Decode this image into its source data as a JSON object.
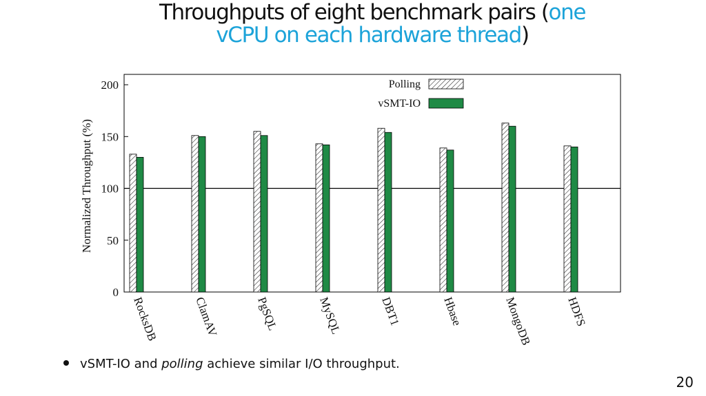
{
  "slide": {
    "title_part1": "Throughputs of eight benchmark pairs (",
    "title_highlight": "one vCPU on each hardware thread",
    "title_part3": ")",
    "bullet_part1": "vSMT-IO and ",
    "bullet_em": "polling",
    "bullet_part2": " achieve similar I/O throughput.",
    "page_number": "20",
    "highlight_color": "#1ca3d9"
  },
  "chart_data": {
    "type": "bar",
    "categories": [
      "RocksDB",
      "ClamAV",
      "PgSQL",
      "MySQL",
      "DBT1",
      "Hbase",
      "MongoDB",
      "HDFS"
    ],
    "series": [
      {
        "name": "Polling",
        "values": [
          133,
          151,
          155,
          143,
          158,
          139,
          163,
          141
        ],
        "color": "#ffffff",
        "pattern": "diagonal-hatch"
      },
      {
        "name": "vSMT-IO",
        "values": [
          130,
          150,
          151,
          142,
          154,
          137,
          160,
          140
        ],
        "color": "#1f8a45"
      }
    ],
    "ylabel": "Normalized Throughput (%)",
    "yticks": [
      0,
      50,
      100,
      150,
      200
    ],
    "ylim": [
      0,
      210
    ],
    "reference_line": 100,
    "legend_position": "top-right"
  }
}
